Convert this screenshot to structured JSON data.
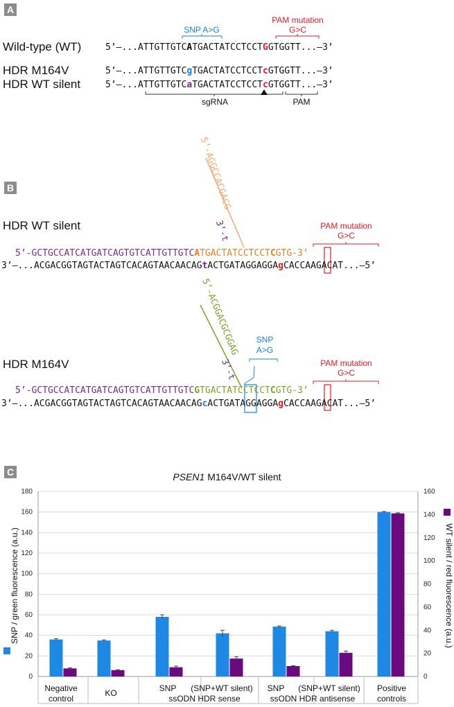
{
  "panels": {
    "a": "A",
    "b": "B",
    "c": "C"
  },
  "panelA": {
    "snp_note": "SNP A>G",
    "pam_note_line1": "PAM mutation",
    "pam_note_line2": "G>C",
    "rows": [
      {
        "label": "Wild-type (WT)",
        "prefix": "5’–...ATTGTTGTC",
        "mid1": "A",
        "mid2": "TGACTATCCTCCT",
        "mid3": "G",
        "suffix": "GTGGTT...–3’"
      },
      {
        "label": "HDR M164V",
        "prefix": "5’–...ATTGTTGTC",
        "mid1": "g",
        "mid2": "TGACTATCCTCCT",
        "mid3": "c",
        "suffix": "GTGGTT...–3’"
      },
      {
        "label": "HDR WT silent",
        "prefix": "5’–...ATTGTTGTC",
        "mid1": "a",
        "mid2": "TGACTATCCTCCT",
        "mid3": "c",
        "suffix": "GTGGTT...–3’"
      }
    ],
    "sgrna_label": "sgRNA",
    "pam_label": "PAM"
  },
  "panelB": {
    "wt_label": "HDR WT silent",
    "m164_label": "HDR M164V",
    "pam_note_line1": "PAM mutation",
    "pam_note_line2": "G>C",
    "snp_note_line1": "SNP",
    "snp_note_line2": "A>G",
    "wt_top_purple": "5’-GCTGCCATCATGATCAGTGTCATTGTTGTC",
    "wt_top_a": "A",
    "wt_top_orange1": "TGACTATCCTCCT",
    "wt_top_c": "C",
    "wt_top_orange2": "GTG-3’",
    "wt_bottom_1": "3’–...ACGACGGTAGTACTAGTCACAGTAACAACAG",
    "wt_bottom_t": "t",
    "wt_bottom_2": "ACTGATAGGAGGA",
    "wt_bottom_g": "g",
    "wt_bottom_3": "CACCAAGACAT...–5’",
    "m_top_purple": "5’-GCTGCCATCATGATCAGTGTCATTGTTGTC",
    "m_top_g": "G",
    "m_top_green1": "TGACTATCCTCCT",
    "m_top_c": "C",
    "m_top_green2": "GTG-3’",
    "m_bottom_1": "3’–...ACGACGGTAGTACTAGTCACAGTAACAACAG",
    "m_bottom_c": "c",
    "m_bottom_2": "ACTGATAGGAGGA",
    "m_bottom_g": "g",
    "m_bottom_3": "CACCAAGACAT...–5’",
    "wt_diag_purple": "3’-t",
    "wt_diag_orange": "5’-AGGCCACGACG",
    "m_diag_purple": "3’-t",
    "m_diag_green": "5’-ACGGACGCGGAG"
  },
  "panelC": {
    "title_italic": "PSEN1",
    "title_rest": " M164V/WT silent",
    "left_axis_title": "SNP / green fluorescence (a.u.)",
    "right_axis_title": "WT silent / red fluorescence (a.u.)",
    "categories_line1": [
      "Negative",
      "KO",
      "SNP",
      "(SNP+WT silent)",
      "SNP",
      "(SNP+WT silent)",
      "Positive"
    ],
    "categories_line2": [
      "control",
      "",
      "ssODN HDR sense",
      "",
      "ssODN HDR antisense",
      "",
      "controls"
    ]
  },
  "chart_data": {
    "type": "bar",
    "title": "PSEN1 M164V/WT silent",
    "categories": [
      "Negative control",
      "KO",
      "SNP",
      "(SNP+WT silent)",
      "SNP",
      "(SNP+WT silent)",
      "Positive controls"
    ],
    "group_labels": [
      "ssODN HDR sense",
      "ssODN HDR antisense"
    ],
    "series": [
      {
        "axis": "left",
        "color": "#1e88e5",
        "values": [
          36,
          35,
          58,
          42,
          48.5,
          44,
          160
        ],
        "errors": [
          0.8,
          0.6,
          2,
          3,
          0.6,
          1,
          0.5
        ]
      },
      {
        "axis": "right",
        "color": "#6a0a7e",
        "values": [
          7,
          5.5,
          8,
          15.5,
          9,
          20.5,
          141
        ],
        "errors": [
          0.5,
          0.4,
          1,
          1.5,
          0.3,
          1.5,
          0.5
        ]
      }
    ],
    "ylabel": "SNP / green fluorescence (a.u.)",
    "y2label": "WT silent / red fluorescence (a.u.)",
    "ylim": [
      0,
      180
    ],
    "y2lim": [
      0,
      160
    ],
    "yticks": [
      0,
      20,
      40,
      60,
      80,
      100,
      120,
      140,
      160,
      180
    ],
    "y2ticks": [
      0,
      20,
      40,
      60,
      80,
      100,
      120,
      140,
      160
    ],
    "grid": true
  }
}
